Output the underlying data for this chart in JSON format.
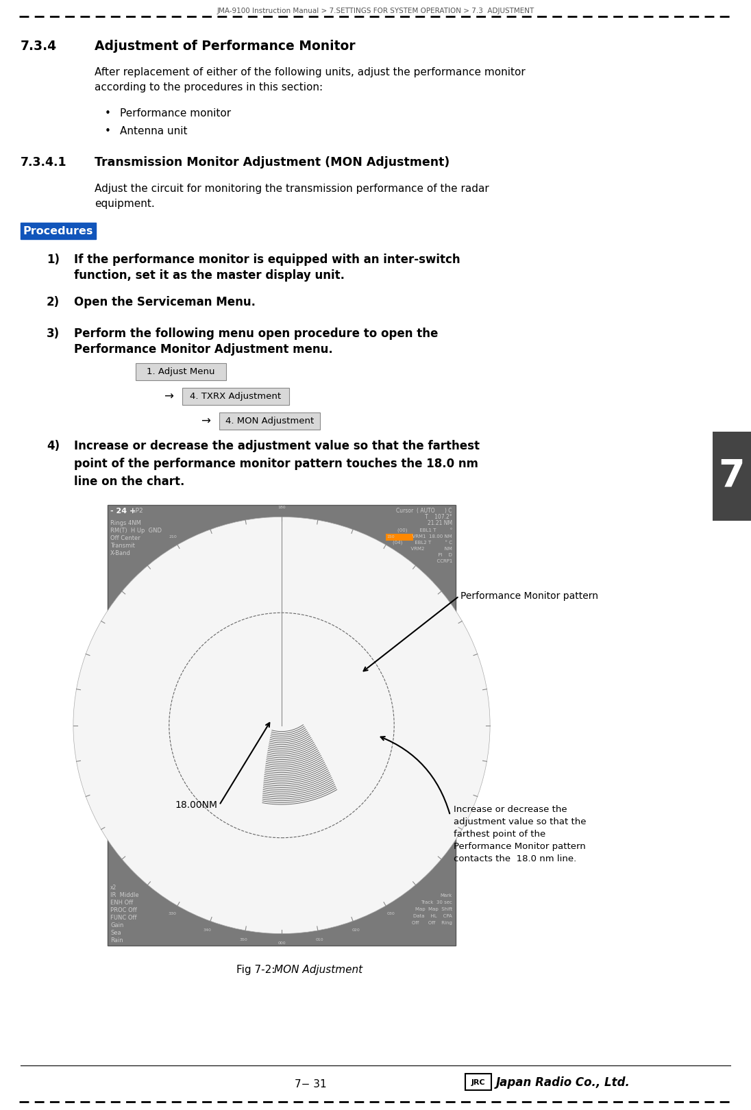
{
  "header_text": "JMA-9100 Instruction Manual > 7.SETTINGS FOR SYSTEM OPERATION > 7.3  ADJUSTMENT",
  "section_number": "7.3.4",
  "section_title": "Adjustment of Performance Monitor",
  "intro_text": "After replacement of either of the following units, adjust the performance monitor\naccording to the procedures in this section:",
  "bullet_items": [
    "Performance monitor",
    "Antenna unit"
  ],
  "subsection_number": "7.3.4.1",
  "subsection_title": "Transmission Monitor Adjustment (MON Adjustment)",
  "subsection_intro": "Adjust the circuit for monitoring the transmission performance of the radar\nequipment.",
  "procedures_label": "Procedures",
  "procedures_bg": "#1155BB",
  "procedures_fg": "#FFFFFF",
  "steps": [
    {
      "num": "1)",
      "text": "If the performance monitor is equipped with an inter-switch\nfunction, set it as the master display unit.",
      "bold": true
    },
    {
      "num": "2)",
      "text": "Open the Serviceman Menu.",
      "bold": true
    },
    {
      "num": "3)",
      "text": "Perform the following menu open procedure to open the\nPerformance Monitor Adjustment menu.",
      "bold": true
    },
    {
      "num": "4)",
      "text": "Increase or decrease the adjustment value so that the farthest\npoint of the performance monitor pattern touches the 18.0 nm\nline on the chart.",
      "bold": true
    }
  ],
  "menu_box1_label": "1. Adjust Menu",
  "menu_box2_label": "4. TXRX Adjustment",
  "menu_box3_label": "4. MON Adjustment",
  "fig_caption_plain": "Fig 7-2: ",
  "fig_caption_italic": "MON Adjustment",
  "page_number": "7−31",
  "side_tab_text": "7",
  "side_tab_bg": "#444444",
  "side_tab_fg": "#FFFFFF",
  "annotation_right": "Performance Monitor pattern",
  "annotation_bottom_lines": [
    "Increase or decrease the",
    "adjustment value so that the",
    "farthest point of the",
    "Performance Monitor pattern",
    "contacts the  18.0 nm line."
  ],
  "label_18nm": "18.00NM",
  "bg_color": "#FFFFFF",
  "radar_bg": "#808080",
  "radar_display_color": "#FFFFFF",
  "range_ring_color": "#AAAAAA"
}
